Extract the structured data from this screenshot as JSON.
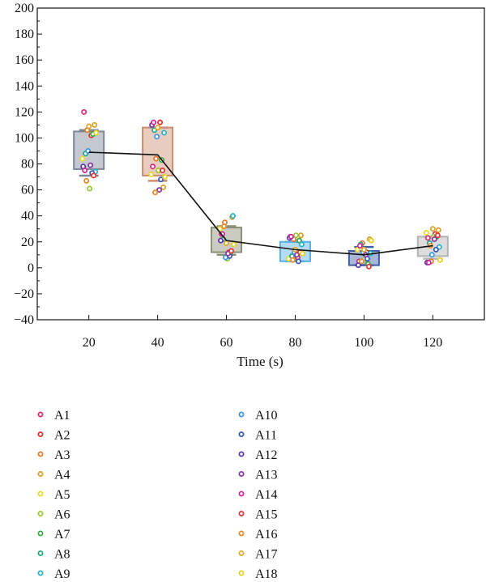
{
  "chart_data": {
    "type": "box",
    "xlabel": "Time (s)",
    "ylabel": "",
    "title": "",
    "x_ticks": [
      20,
      40,
      60,
      80,
      100,
      120
    ],
    "y_ticks": [
      -40,
      -20,
      0,
      20,
      40,
      60,
      80,
      100,
      120,
      140,
      160,
      180,
      200
    ],
    "xlim": [
      5,
      135
    ],
    "ylim": [
      -40,
      200
    ],
    "grid": false,
    "legend_position": "bottom",
    "boxes": [
      {
        "x": 20,
        "q1": 76,
        "median": 89,
        "q3": 105,
        "whisker_low": 71,
        "whisker_high": 106,
        "color": "#7d8796"
      },
      {
        "x": 40,
        "q1": 71,
        "median": 87,
        "q3": 108,
        "whisker_low": 67,
        "whisker_high": 108,
        "color": "#c98d70"
      },
      {
        "x": 60,
        "q1": 12,
        "median": 21,
        "q3": 31,
        "whisker_low": 10,
        "whisker_high": 32,
        "color": "#8a8f77"
      },
      {
        "x": 80,
        "q1": 5,
        "median": 14,
        "q3": 20,
        "whisker_low": 5,
        "whisker_high": 20,
        "color": "#5ab0e3"
      },
      {
        "x": 100,
        "q1": 2,
        "median": 10,
        "q3": 13,
        "whisker_low": 2,
        "whisker_high": 16,
        "color": "#3e5fa8"
      },
      {
        "x": 120,
        "q1": 9,
        "median": 17,
        "q3": 24,
        "whisker_low": 7,
        "whisker_high": 24,
        "color": "#b4b4b4"
      }
    ],
    "mean_line": {
      "x": [
        20,
        40,
        60,
        80,
        100,
        120
      ],
      "y": [
        89,
        87,
        21,
        14,
        10,
        17
      ]
    },
    "series_names": [
      "A1",
      "A2",
      "A3",
      "A4",
      "A5",
      "A6",
      "A7",
      "A8",
      "A9",
      "A10",
      "A11",
      "A12",
      "A13",
      "A14",
      "A15",
      "A16",
      "A17",
      "A18"
    ],
    "series_colors": [
      "#d62e7e",
      "#e03030",
      "#ea7b2a",
      "#d9a22a",
      "#e6dc2a",
      "#9cc83a",
      "#3aa84a",
      "#2aa88a",
      "#2ab4c8",
      "#3a9ae0",
      "#3a5ab4",
      "#5a3aa8",
      "#8a3aa8",
      "#d42a9a",
      "#e03a3a",
      "#ea8a2a",
      "#e0a62a",
      "#e6d02a"
    ],
    "points": [
      [
        120,
        78,
        26,
        24,
        5,
        23
      ],
      [
        102,
        112,
        12,
        8,
        12,
        26
      ],
      [
        106,
        84,
        35,
        22,
        19,
        5
      ],
      [
        110,
        62,
        39,
        25,
        22,
        29
      ],
      [
        84,
        72,
        30,
        7,
        14,
        27
      ],
      [
        61,
        75,
        7,
        25,
        7,
        24
      ],
      [
        103,
        83,
        11,
        21,
        3,
        24
      ],
      [
        88,
        106,
        22,
        9,
        18,
        19
      ],
      [
        74,
        104,
        40,
        18,
        11,
        16
      ],
      [
        90,
        101,
        8,
        12,
        12,
        10
      ],
      [
        73,
        68,
        9,
        5,
        7,
        14
      ],
      [
        78,
        110,
        21,
        23,
        2,
        4
      ],
      [
        79,
        60,
        11,
        10,
        10,
        22
      ],
      [
        75,
        112,
        26,
        24,
        17,
        4
      ],
      [
        71,
        75,
        13,
        12,
        1,
        25
      ],
      [
        67,
        58,
        32,
        6,
        5,
        17
      ],
      [
        109,
        108,
        19,
        14,
        14,
        30
      ],
      [
        104,
        70,
        18,
        11,
        21,
        6
      ]
    ]
  }
}
